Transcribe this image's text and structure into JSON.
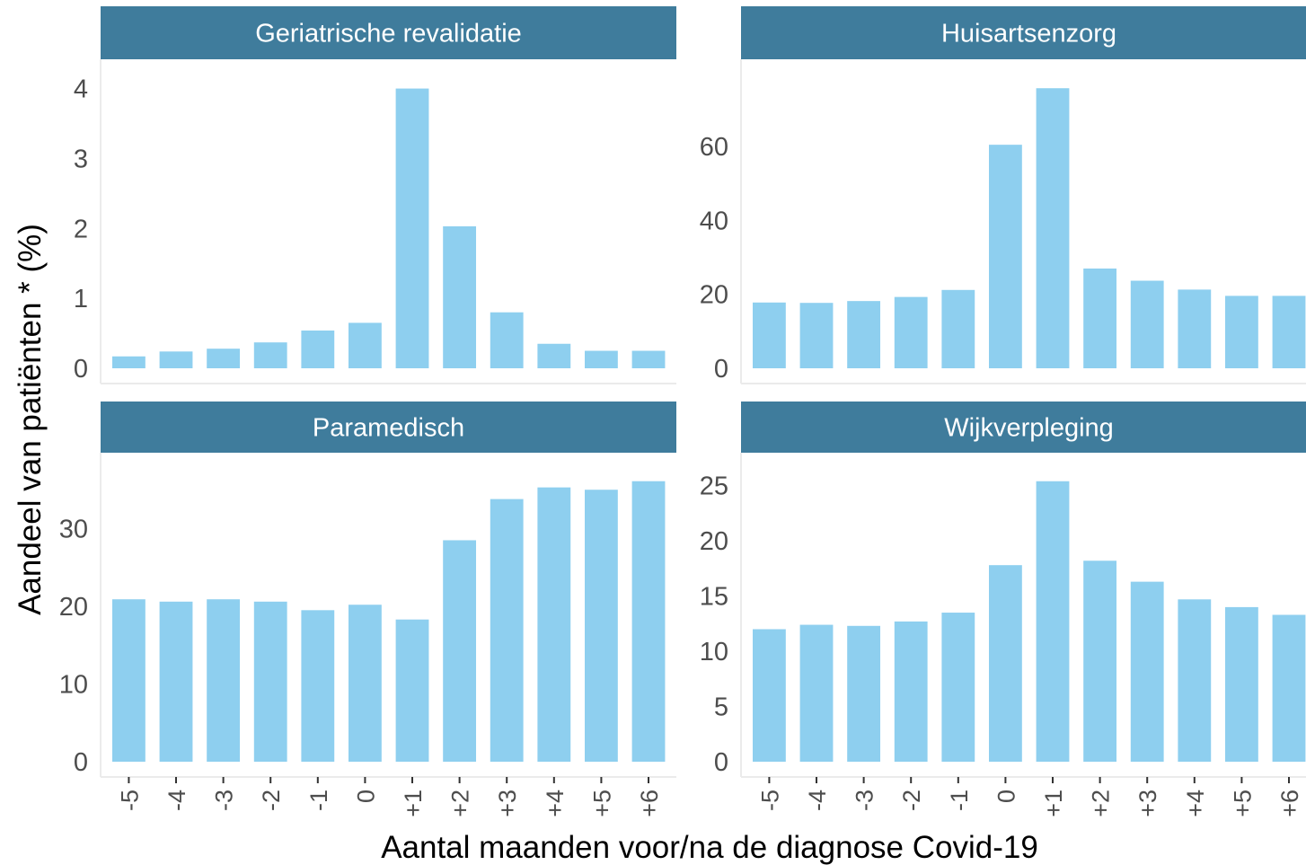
{
  "chart_data": {
    "type": "bar",
    "xlabel": "Aantal maanden voor/na de diagnose Covid-19",
    "ylabel": "Aandeel van patiënten * (%)",
    "categories": [
      "-5",
      "-4",
      "-3",
      "-2",
      "-1",
      "0",
      "+1",
      "+2",
      "+3",
      "+4",
      "+5",
      "+6"
    ],
    "colors": {
      "bar": "#8ecfef",
      "strip": "#3f7c9c",
      "tick": "#4d4d4d",
      "axis_line": "#ebebeb"
    },
    "grid": false,
    "panels": [
      {
        "title": "Geriatrische revalidatie",
        "values": [
          0.17,
          0.24,
          0.28,
          0.37,
          0.54,
          0.65,
          4.0,
          2.03,
          0.8,
          0.35,
          0.25,
          0.25
        ],
        "ylim": [
          0,
          4.2
        ],
        "yticks": [
          0,
          1,
          2,
          3,
          4
        ]
      },
      {
        "title": "Huisartsenzorg",
        "values": [
          17.8,
          17.7,
          18.2,
          19.3,
          21.2,
          60.5,
          75.8,
          27.0,
          23.7,
          21.3,
          19.6,
          19.6
        ],
        "ylim": [
          0,
          79.5
        ],
        "yticks": [
          0,
          20,
          40,
          60
        ]
      },
      {
        "title": "Paramedisch",
        "values": [
          20.9,
          20.6,
          20.9,
          20.6,
          19.5,
          20.2,
          18.3,
          28.5,
          33.8,
          35.3,
          35.0,
          36.1
        ],
        "ylim": [
          0,
          37.8
        ],
        "yticks": [
          0,
          10,
          20,
          30
        ]
      },
      {
        "title": "Wijkverpleging",
        "values": [
          12.0,
          12.4,
          12.3,
          12.7,
          13.5,
          17.8,
          25.4,
          18.2,
          16.3,
          14.7,
          14.0,
          13.3
        ],
        "ylim": [
          0,
          26.6
        ],
        "yticks": [
          0,
          5,
          10,
          15,
          20,
          25
        ]
      }
    ]
  }
}
